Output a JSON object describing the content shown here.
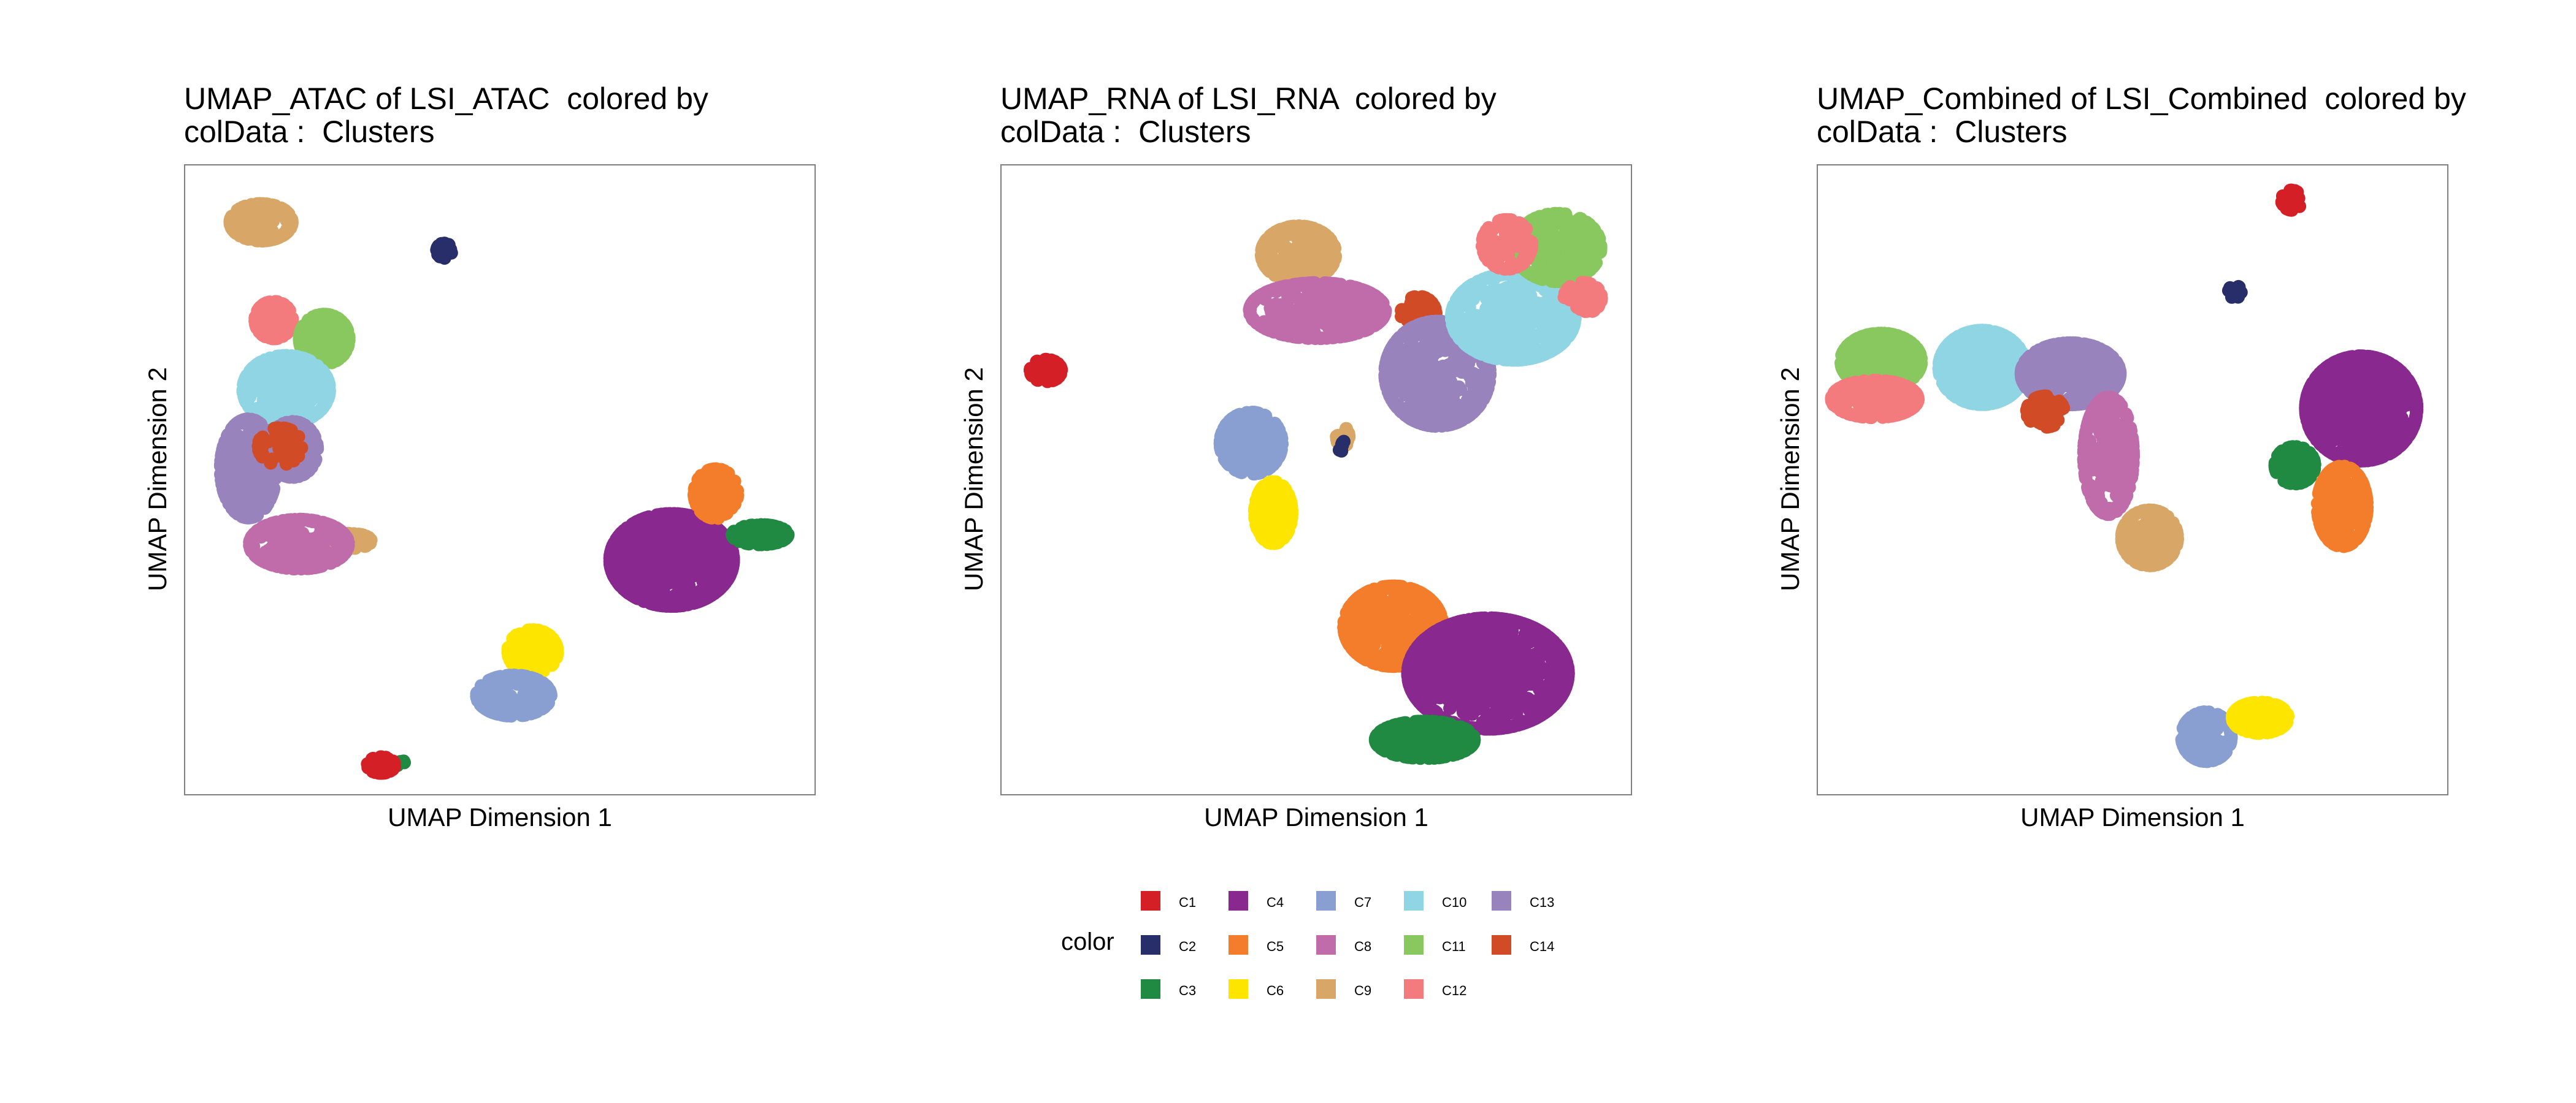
{
  "colors": {
    "C1": "#D51F26",
    "C2": "#272E6A",
    "C3": "#208A42",
    "C4": "#89288F",
    "C5": "#F47D2B",
    "C6": "#FEE500",
    "C7": "#8A9FD1",
    "C8": "#C06CAB",
    "C9": "#D8A767",
    "C10": "#90D5E4",
    "C11": "#89C75F",
    "C12": "#F37B7D",
    "C13": "#9983BD",
    "C14": "#D24B27"
  },
  "legend": {
    "title": "color",
    "items": [
      "C1",
      "C2",
      "C3",
      "C4",
      "C5",
      "C6",
      "C7",
      "C8",
      "C9",
      "C10",
      "C11",
      "C12",
      "C13",
      "C14"
    ]
  },
  "chart_data": [
    {
      "type": "scatter",
      "title": "UMAP_ATAC of LSI_ATAC  colored by\ncolData :  Clusters",
      "xlabel": "UMAP Dimension 1",
      "ylabel": "UMAP Dimension 2",
      "xlim": [
        0,
        100
      ],
      "ylim": [
        0,
        100
      ],
      "grid": false,
      "clusters": [
        {
          "name": "C9",
          "blobs": [
            {
              "x": 12,
              "y": 91,
              "sx": 5,
              "sy": 3,
              "n": 200
            },
            {
              "x": 26,
              "y": 40.5,
              "sx": 3.5,
              "sy": 1.2,
              "n": 50
            }
          ]
        },
        {
          "name": "C2",
          "blobs": [
            {
              "x": 41,
              "y": 86.5,
              "sx": 1.2,
              "sy": 1.2,
              "n": 25
            }
          ]
        },
        {
          "name": "C12",
          "blobs": [
            {
              "x": 14,
              "y": 75.5,
              "sx": 3,
              "sy": 3,
              "n": 120
            }
          ]
        },
        {
          "name": "C11",
          "blobs": [
            {
              "x": 22,
              "y": 72.5,
              "sx": 4,
              "sy": 4,
              "n": 170
            }
          ]
        },
        {
          "name": "C10",
          "blobs": [
            {
              "x": 16,
              "y": 64.5,
              "sx": 7,
              "sy": 5.5,
              "n": 300
            }
          ]
        },
        {
          "name": "C13",
          "blobs": [
            {
              "x": 10,
              "y": 52,
              "sx": 4.5,
              "sy": 8,
              "n": 280
            },
            {
              "x": 17,
              "y": 55,
              "sx": 4,
              "sy": 4.5,
              "n": 120
            }
          ]
        },
        {
          "name": "C14",
          "blobs": [
            {
              "x": 15,
              "y": 55.5,
              "sx": 3.5,
              "sy": 3,
              "n": 40
            }
          ]
        },
        {
          "name": "C8",
          "blobs": [
            {
              "x": 18,
              "y": 40,
              "sx": 8,
              "sy": 4,
              "n": 260
            }
          ]
        },
        {
          "name": "C4",
          "blobs": [
            {
              "x": 77,
              "y": 37.5,
              "sx": 10,
              "sy": 7.5,
              "n": 750
            }
          ]
        },
        {
          "name": "C5",
          "blobs": [
            {
              "x": 84,
              "y": 48,
              "sx": 3.5,
              "sy": 4,
              "n": 120
            }
          ]
        },
        {
          "name": "C3",
          "blobs": [
            {
              "x": 91,
              "y": 41.5,
              "sx": 4.5,
              "sy": 1.6,
              "n": 110
            },
            {
              "x": 34,
              "y": 5.5,
              "sx": 0.7,
              "sy": 0.7,
              "n": 4
            }
          ]
        },
        {
          "name": "C6",
          "blobs": [
            {
              "x": 55,
              "y": 23,
              "sx": 4,
              "sy": 3.5,
              "n": 130
            }
          ]
        },
        {
          "name": "C7",
          "blobs": [
            {
              "x": 52,
              "y": 16,
              "sx": 6,
              "sy": 3.3,
              "n": 180
            }
          ]
        },
        {
          "name": "C1",
          "blobs": [
            {
              "x": 31,
              "y": 5,
              "sx": 2.2,
              "sy": 1.3,
              "n": 60
            }
          ]
        }
      ]
    },
    {
      "type": "scatter",
      "title": "UMAP_RNA of LSI_RNA  colored by\ncolData :  Clusters",
      "xlabel": "UMAP Dimension 1",
      "ylabel": "UMAP Dimension 2",
      "xlim": [
        0,
        100
      ],
      "ylim": [
        0,
        100
      ],
      "grid": false,
      "clusters": [
        {
          "name": "C1",
          "blobs": [
            {
              "x": 7,
              "y": 67.5,
              "sx": 2.5,
              "sy": 1.8,
              "n": 70
            }
          ]
        },
        {
          "name": "C9",
          "blobs": [
            {
              "x": 47,
              "y": 86,
              "sx": 6,
              "sy": 4.5,
              "n": 220
            },
            {
              "x": 54,
              "y": 57,
              "sx": 1,
              "sy": 1.6,
              "n": 25
            }
          ]
        },
        {
          "name": "C8",
          "blobs": [
            {
              "x": 50,
              "y": 77,
              "sx": 11,
              "sy": 4.5,
              "n": 350
            }
          ]
        },
        {
          "name": "C14",
          "blobs": [
            {
              "x": 66,
              "y": 76.5,
              "sx": 2.8,
              "sy": 2.8,
              "n": 80
            }
          ]
        },
        {
          "name": "C13",
          "blobs": [
            {
              "x": 69,
              "y": 67,
              "sx": 8.5,
              "sy": 8.5,
              "n": 480
            }
          ]
        },
        {
          "name": "C10",
          "blobs": [
            {
              "x": 81,
              "y": 76,
              "sx": 10,
              "sy": 7,
              "n": 560
            }
          ]
        },
        {
          "name": "C11",
          "blobs": [
            {
              "x": 88,
              "y": 87,
              "sx": 7,
              "sy": 5.5,
              "n": 260
            }
          ]
        },
        {
          "name": "C12",
          "blobs": [
            {
              "x": 80,
              "y": 87.5,
              "sx": 4,
              "sy": 4,
              "n": 110
            },
            {
              "x": 92,
              "y": 79,
              "sx": 3,
              "sy": 2.5,
              "n": 60
            }
          ]
        },
        {
          "name": "C7",
          "blobs": [
            {
              "x": 39.5,
              "y": 56,
              "sx": 5,
              "sy": 5,
              "n": 200
            }
          ]
        },
        {
          "name": "C6",
          "blobs": [
            {
              "x": 43,
              "y": 45,
              "sx": 3,
              "sy": 5,
              "n": 150
            }
          ]
        },
        {
          "name": "C2",
          "blobs": [
            {
              "x": 54,
              "y": 55.5,
              "sx": 0.8,
              "sy": 0.8,
              "n": 6
            }
          ]
        },
        {
          "name": "C5",
          "blobs": [
            {
              "x": 62,
              "y": 27,
              "sx": 8,
              "sy": 6.5,
              "n": 380
            }
          ]
        },
        {
          "name": "C4",
          "blobs": [
            {
              "x": 77,
              "y": 19.5,
              "sx": 13,
              "sy": 9,
              "n": 1000
            }
          ]
        },
        {
          "name": "C3",
          "blobs": [
            {
              "x": 67,
              "y": 9,
              "sx": 8,
              "sy": 3,
              "n": 260
            }
          ]
        }
      ]
    },
    {
      "type": "scatter",
      "title": "UMAP_Combined of LSI_Combined  colored by\ncolData :  Clusters",
      "xlabel": "UMAP Dimension 1",
      "ylabel": "UMAP Dimension 2",
      "xlim": [
        0,
        100
      ],
      "ylim": [
        0,
        100
      ],
      "grid": false,
      "clusters": [
        {
          "name": "C1",
          "blobs": [
            {
              "x": 75,
              "y": 94.5,
              "sx": 1.6,
              "sy": 1.6,
              "n": 40
            }
          ]
        },
        {
          "name": "C2",
          "blobs": [
            {
              "x": 66,
              "y": 80,
              "sx": 1,
              "sy": 1,
              "n": 15
            }
          ]
        },
        {
          "name": "C11",
          "blobs": [
            {
              "x": 10,
              "y": 69,
              "sx": 6.5,
              "sy": 4.5,
              "n": 250
            }
          ]
        },
        {
          "name": "C12",
          "blobs": [
            {
              "x": 9,
              "y": 63,
              "sx": 7,
              "sy": 3,
              "n": 200
            }
          ]
        },
        {
          "name": "C10",
          "blobs": [
            {
              "x": 26,
              "y": 68,
              "sx": 7,
              "sy": 6,
              "n": 380
            }
          ]
        },
        {
          "name": "C13",
          "blobs": [
            {
              "x": 40,
              "y": 67,
              "sx": 8,
              "sy": 5,
              "n": 380
            }
          ]
        },
        {
          "name": "C14",
          "blobs": [
            {
              "x": 36,
              "y": 61,
              "sx": 3,
              "sy": 2.5,
              "n": 60
            }
          ]
        },
        {
          "name": "C8",
          "blobs": [
            {
              "x": 46,
              "y": 54,
              "sx": 4,
              "sy": 9.5,
              "n": 280
            }
          ]
        },
        {
          "name": "C9",
          "blobs": [
            {
              "x": 52.5,
              "y": 41,
              "sx": 4.5,
              "sy": 4.5,
              "n": 170
            }
          ]
        },
        {
          "name": "C4",
          "blobs": [
            {
              "x": 86,
              "y": 61.5,
              "sx": 9,
              "sy": 8.5,
              "n": 750
            }
          ]
        },
        {
          "name": "C3",
          "blobs": [
            {
              "x": 75.5,
              "y": 52.5,
              "sx": 3.2,
              "sy": 3,
              "n": 110
            }
          ]
        },
        {
          "name": "C5",
          "blobs": [
            {
              "x": 83,
              "y": 46,
              "sx": 4,
              "sy": 6.5,
              "n": 220
            }
          ]
        },
        {
          "name": "C7",
          "blobs": [
            {
              "x": 61.5,
              "y": 9.5,
              "sx": 4,
              "sy": 4,
              "n": 170
            }
          ]
        },
        {
          "name": "C6",
          "blobs": [
            {
              "x": 70,
              "y": 12.5,
              "sx": 4.5,
              "sy": 2.5,
              "n": 160
            }
          ]
        }
      ]
    }
  ]
}
